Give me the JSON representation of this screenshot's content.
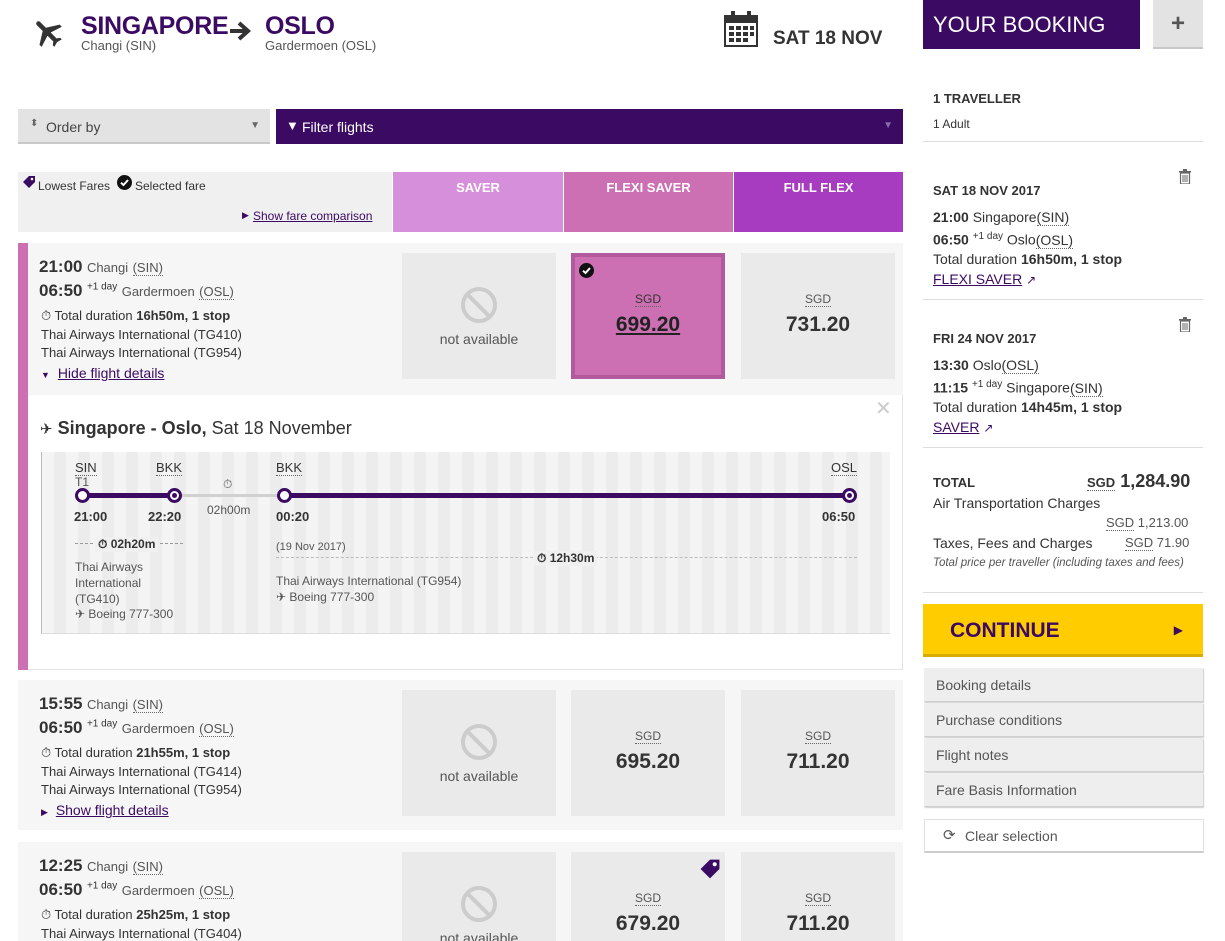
{
  "header": {
    "origin_city": "SINGAPORE",
    "origin_airport": "Changi (SIN)",
    "destination_city": "OSLO",
    "destination_airport": "Gardermoen (OSL)",
    "date": "SAT 18 NOV"
  },
  "toolbar": {
    "order_by": "Order by",
    "filter": "Filter flights"
  },
  "fare_header": {
    "lowest_fares": "Lowest Fares",
    "selected_fare": "Selected fare",
    "show_comparison": "Show fare comparison",
    "columns": [
      "SAVER",
      "FLEXI SAVER",
      "FULL FLEX"
    ],
    "colors": [
      "#d68fdb",
      "#cc6fb3",
      "#a83cc0"
    ]
  },
  "flights": [
    {
      "dep_time": "21:00",
      "dep_airport": "Changi",
      "dep_code": "(SIN)",
      "arr_time": "06:50",
      "arr_plus": "+1 day",
      "arr_airport": "Gardermoen",
      "arr_code": "(OSL)",
      "duration_label": "Total duration",
      "duration": "16h50m, 1 stop",
      "airline1": "Thai Airways International (TG410)",
      "airline2": "Thai Airways International (TG954)",
      "toggle": "Hide flight details",
      "saver": "not available",
      "currency": "SGD",
      "flexi": "699.20",
      "full": "731.20"
    },
    {
      "dep_time": "15:55",
      "dep_airport": "Changi",
      "dep_code": "(SIN)",
      "arr_time": "06:50",
      "arr_plus": "+1 day",
      "arr_airport": "Gardermoen",
      "arr_code": "(OSL)",
      "duration_label": "Total duration",
      "duration": "21h55m, 1 stop",
      "airline1": "Thai Airways International (TG414)",
      "airline2": "Thai Airways International (TG954)",
      "toggle": "Show flight details",
      "saver": "not available",
      "currency": "SGD",
      "flexi": "695.20",
      "full": "711.20"
    },
    {
      "dep_time": "12:25",
      "dep_airport": "Changi",
      "dep_code": "(SIN)",
      "arr_time": "06:50",
      "arr_plus": "+1 day",
      "arr_airport": "Gardermoen",
      "arr_code": "(OSL)",
      "duration_label": "Total duration",
      "duration": "25h25m, 1 stop",
      "airline1": "Thai Airways International (TG404)",
      "saver": "not available",
      "currency": "SGD",
      "flexi": "679.20",
      "full": "711.20"
    }
  ],
  "details": {
    "route": "Singapore - Oslo,",
    "date": "Sat 18 November",
    "seg1": {
      "from": "SIN",
      "terminal": "T1",
      "to": "BKK",
      "dep": "21:00",
      "arr": "22:20",
      "duration": "02h20m",
      "airline": [
        "Thai Airways",
        "International",
        "(TG410)"
      ],
      "aircraft": "Boeing 777-300"
    },
    "layover": "02h00m",
    "seg2": {
      "from": "BKK",
      "to": "OSL",
      "dep": "00:20",
      "arr": "06:50",
      "date_note": "(19 Nov 2017)",
      "duration": "12h30m",
      "airline": "Thai Airways International (TG954)",
      "aircraft": "Boeing 777-300"
    }
  },
  "booking": {
    "title": "YOUR BOOKING",
    "plus": "+",
    "travellers": "1 TRAVELLER",
    "adults": "1 Adult",
    "outbound": {
      "date": "SAT 18 NOV 2017",
      "dep_time": "21:00",
      "dep_city": "Singapore",
      "dep_code": "(SIN)",
      "arr_time": "06:50",
      "arr_plus": "+1 day",
      "arr_city": "Oslo",
      "arr_code": "(OSL)",
      "duration_label": "Total duration",
      "duration": "16h50m, 1 stop",
      "fare": "FLEXI SAVER"
    },
    "inbound": {
      "date": "FRI 24 NOV 2017",
      "dep_time": "13:30",
      "dep_city": "Oslo",
      "dep_code": "(OSL)",
      "arr_time": "11:15",
      "arr_plus": "+1 day",
      "arr_city": "Singapore",
      "arr_code": "(SIN)",
      "duration_label": "Total duration",
      "duration": "14h45m, 1 stop",
      "fare": "SAVER"
    },
    "total_label": "TOTAL",
    "currency": "SGD",
    "total": "1,284.90",
    "air_label": "Air Transportation Charges",
    "air_value": "1,213.00",
    "tax_label": "Taxes, Fees and Charges",
    "tax_value": "71.90",
    "note": "Total price per traveller (including taxes and fees)",
    "continue": "CONTINUE",
    "links": [
      "Booking details",
      "Purchase conditions",
      "Flight notes",
      "Fare Basis Information"
    ],
    "clear": "Clear selection"
  }
}
